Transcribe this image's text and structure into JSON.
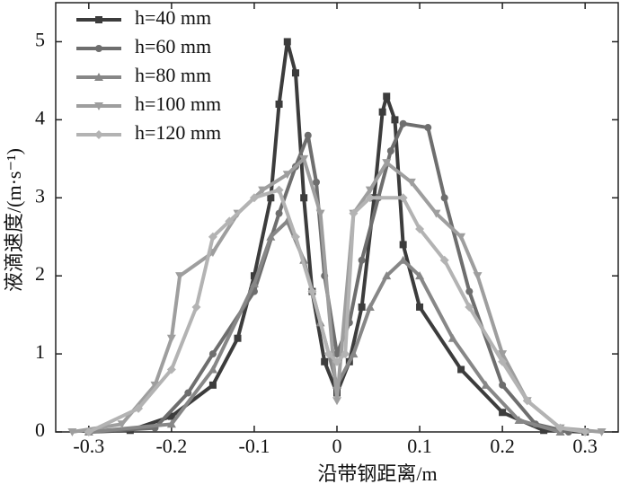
{
  "chart_data": {
    "type": "line",
    "xlabel": "沿带钢距离/m",
    "ylabel": "液滴速度/(m·s⁻¹)",
    "xlim": [
      -0.34,
      0.34
    ],
    "ylim": [
      0,
      5.5
    ],
    "xticks": [
      -0.3,
      -0.2,
      -0.1,
      0,
      0.1,
      0.2,
      0.3
    ],
    "yticks": [
      0,
      1,
      2,
      3,
      4,
      5
    ],
    "legend": "upper-left",
    "series": [
      {
        "name": "h=40 mm",
        "color": "#3c3c3c",
        "marker": "square",
        "x": [
          -0.3,
          -0.25,
          -0.2,
          -0.15,
          -0.12,
          -0.1,
          -0.08,
          -0.07,
          -0.06,
          -0.05,
          -0.04,
          -0.03,
          -0.015,
          0,
          0.015,
          0.03,
          0.045,
          0.055,
          0.06,
          0.07,
          0.08,
          0.1,
          0.15,
          0.2,
          0.25,
          0.3
        ],
        "values": [
          0,
          0.02,
          0.2,
          0.6,
          1.2,
          2.0,
          3.0,
          4.2,
          5.0,
          4.6,
          3.0,
          1.8,
          0.9,
          0.5,
          0.9,
          1.6,
          3.0,
          4.1,
          4.3,
          4.0,
          2.4,
          1.6,
          0.8,
          0.25,
          0.02,
          0
        ]
      },
      {
        "name": "h=60 mm",
        "color": "#6e6e6e",
        "marker": "circle",
        "x": [
          -0.3,
          -0.22,
          -0.18,
          -0.15,
          -0.1,
          -0.07,
          -0.05,
          -0.035,
          -0.025,
          -0.015,
          0,
          0.015,
          0.03,
          0.05,
          0.065,
          0.08,
          0.11,
          0.13,
          0.16,
          0.2,
          0.24,
          0.28
        ],
        "values": [
          0,
          0.05,
          0.5,
          1.0,
          1.8,
          2.8,
          3.4,
          3.8,
          3.2,
          2.0,
          1.0,
          1.4,
          2.2,
          3.0,
          3.6,
          3.95,
          3.9,
          3.0,
          1.8,
          0.6,
          0.1,
          0
        ]
      },
      {
        "name": "h=80 mm",
        "color": "#878787",
        "marker": "triangle-up",
        "x": [
          -0.3,
          -0.2,
          -0.15,
          -0.1,
          -0.08,
          -0.06,
          -0.04,
          -0.02,
          0,
          0.02,
          0.04,
          0.06,
          0.08,
          0.1,
          0.14,
          0.18,
          0.22,
          0.27
        ],
        "values": [
          0,
          0.1,
          0.8,
          1.9,
          2.5,
          2.7,
          2.2,
          1.4,
          0.6,
          1.0,
          1.6,
          2.0,
          2.2,
          2.0,
          1.2,
          0.6,
          0.15,
          0
        ]
      },
      {
        "name": "h=100 mm",
        "color": "#9e9e9e",
        "marker": "triangle-down",
        "x": [
          -0.32,
          -0.26,
          -0.22,
          -0.2,
          -0.19,
          -0.15,
          -0.12,
          -0.09,
          -0.06,
          -0.04,
          -0.02,
          0,
          0.02,
          0.04,
          0.06,
          0.09,
          0.12,
          0.15,
          0.17,
          0.2,
          0.23,
          0.27,
          0.32
        ],
        "values": [
          0,
          0.1,
          0.6,
          1.2,
          2.0,
          2.3,
          2.8,
          3.1,
          3.3,
          3.5,
          2.8,
          0.4,
          2.8,
          3.1,
          3.45,
          3.2,
          2.8,
          2.5,
          2.0,
          1.0,
          0.4,
          0.05,
          0
        ]
      },
      {
        "name": "h=120 mm",
        "color": "#b3b3b3",
        "marker": "diamond",
        "x": [
          -0.3,
          -0.24,
          -0.2,
          -0.17,
          -0.15,
          -0.13,
          -0.1,
          -0.07,
          -0.05,
          -0.03,
          -0.01,
          0,
          0.01,
          0.02,
          0.04,
          0.08,
          0.1,
          0.13,
          0.16,
          0.2,
          0.23,
          0.27,
          0.3
        ],
        "values": [
          0,
          0.3,
          0.8,
          1.6,
          2.5,
          2.7,
          3.0,
          3.1,
          2.5,
          1.8,
          1.0,
          0.9,
          1.0,
          2.8,
          3.0,
          3.0,
          2.6,
          2.2,
          1.6,
          0.9,
          0.4,
          0.05,
          0
        ]
      }
    ]
  }
}
